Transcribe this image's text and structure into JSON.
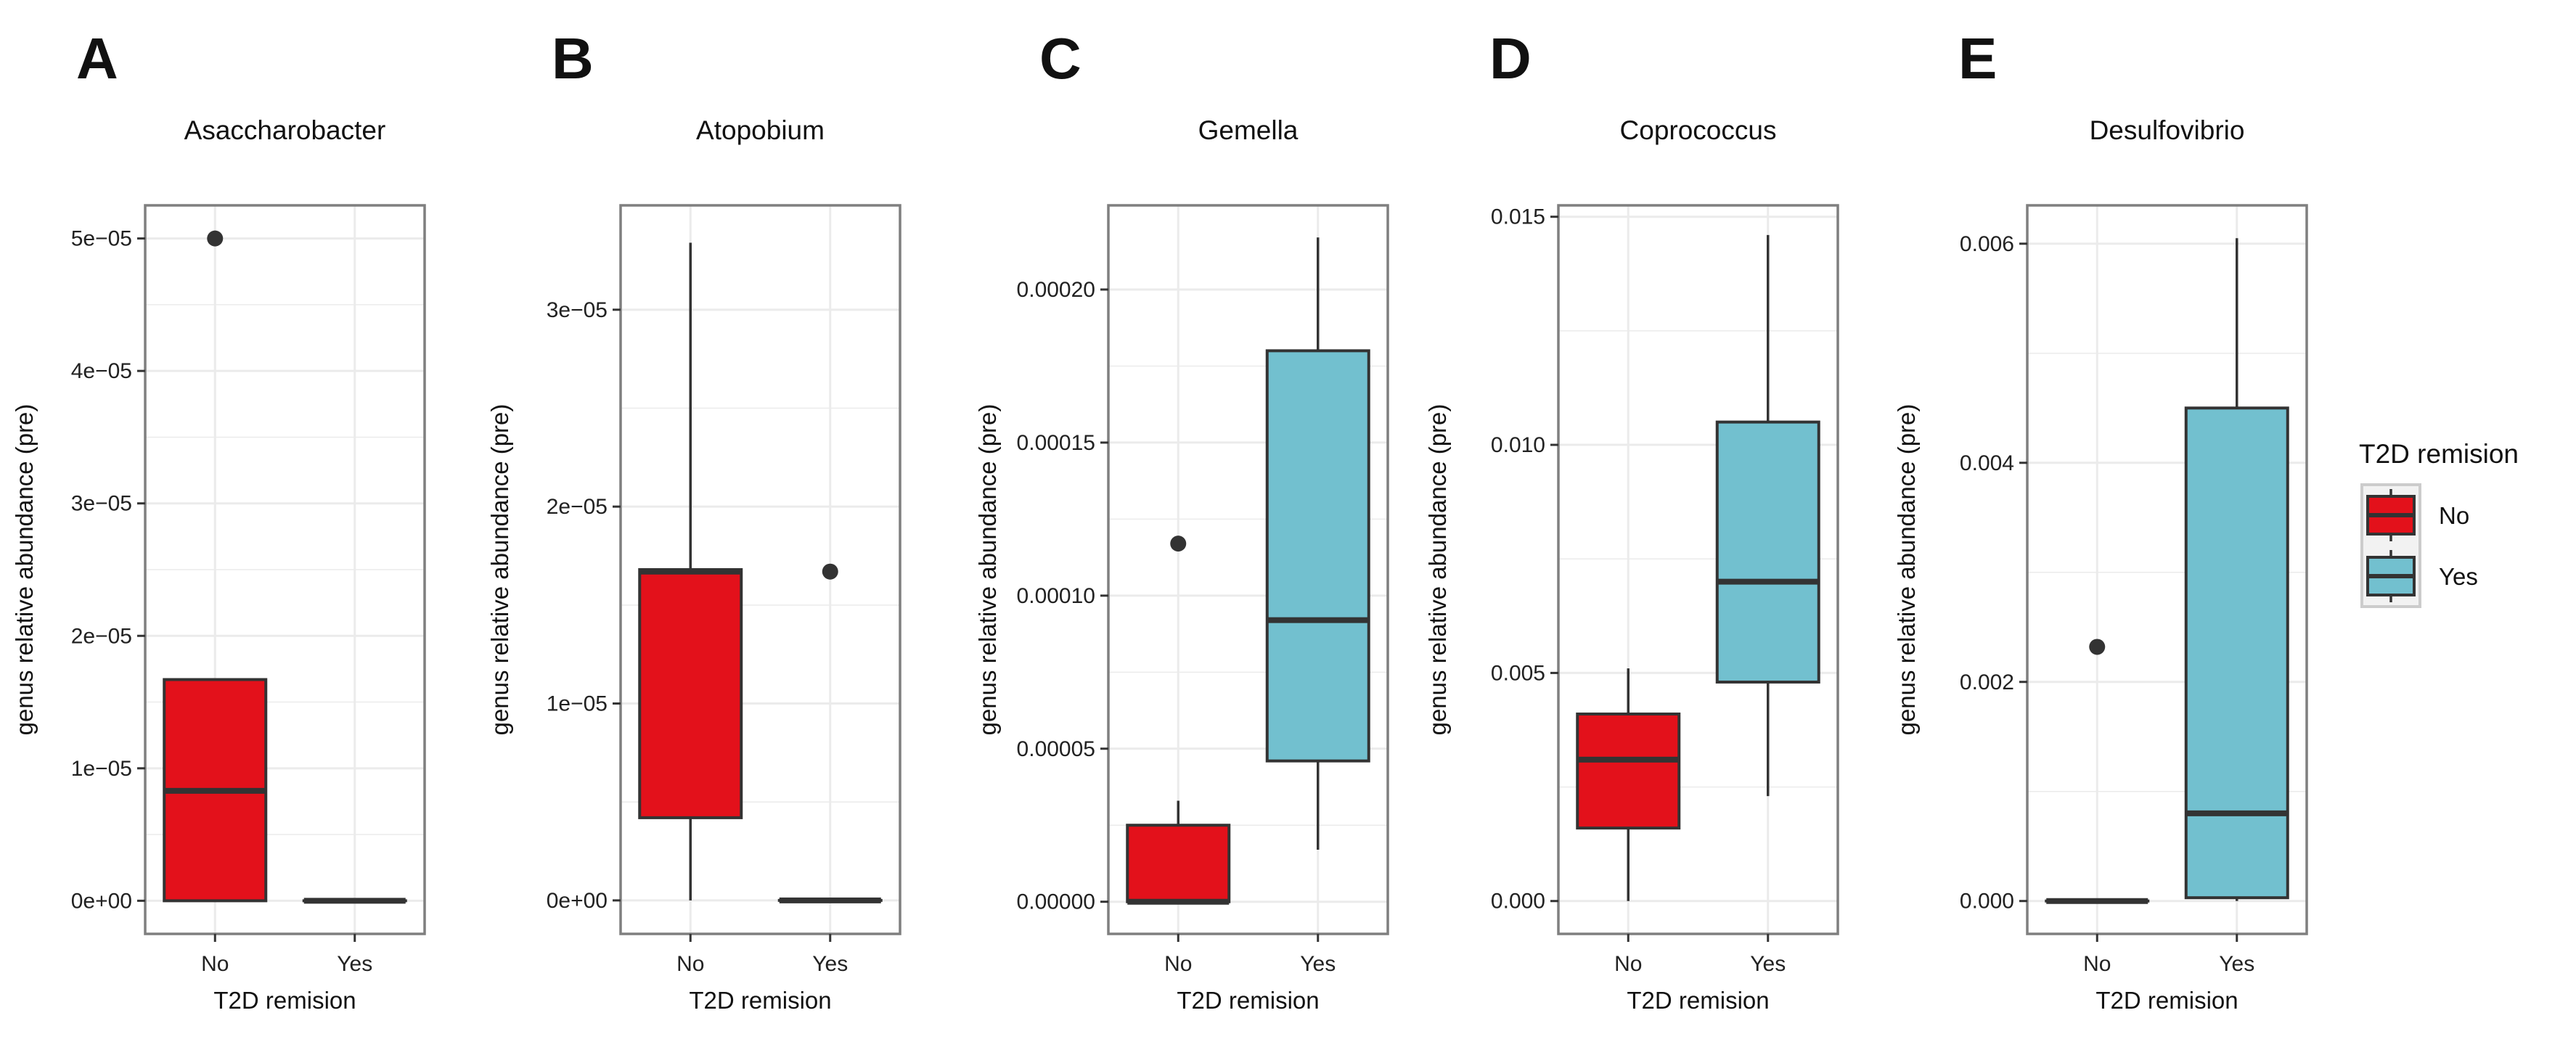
{
  "chart_data": [
    {
      "type": "box",
      "letter": "A",
      "title": "Asaccharobacter",
      "xlabel": "T2D remision",
      "ylabel": "genus relative abundance (pre)",
      "categories": [
        "No",
        "Yes"
      ],
      "ylim": [
        -2.5e-06,
        5.25e-05
      ],
      "yticks": [
        0,
        1e-05,
        2e-05,
        3e-05,
        4e-05,
        5e-05
      ],
      "yticklabels": [
        "0e+00",
        "1e−05",
        "2e−05",
        "3e−05",
        "4e−05",
        "5e−05"
      ],
      "boxes": [
        {
          "group": "No",
          "lower_whisker": 0,
          "q1": 0,
          "median": 8.3e-06,
          "q3": 1.67e-05,
          "upper_whisker": 1.67e-05,
          "outliers": [
            5e-05
          ]
        },
        {
          "group": "Yes",
          "lower_whisker": 0,
          "q1": 0,
          "median": 0,
          "q3": 0,
          "upper_whisker": 0,
          "outliers": []
        }
      ]
    },
    {
      "type": "box",
      "letter": "B",
      "title": "Atopobium",
      "xlabel": "T2D remision",
      "ylabel": "genus relative abundance (pre)",
      "categories": [
        "No",
        "Yes"
      ],
      "ylim": [
        -1.7e-06,
        3.53e-05
      ],
      "yticks": [
        0,
        1e-05,
        2e-05,
        3e-05
      ],
      "yticklabels": [
        "0e+00",
        "1e−05",
        "2e−05",
        "3e−05"
      ],
      "boxes": [
        {
          "group": "No",
          "lower_whisker": 0,
          "q1": 4.2e-06,
          "median": 1.67e-05,
          "q3": 1.68e-05,
          "upper_whisker": 3.34e-05,
          "outliers": []
        },
        {
          "group": "Yes",
          "lower_whisker": 0,
          "q1": 0,
          "median": 0,
          "q3": 0,
          "upper_whisker": 0,
          "outliers": [
            1.67e-05
          ]
        }
      ]
    },
    {
      "type": "box",
      "letter": "C",
      "title": "Gemella",
      "xlabel": "T2D remision",
      "ylabel": "genus relative abundance (pre)",
      "categories": [
        "No",
        "Yes"
      ],
      "ylim": [
        -1.05e-05,
        0.0002275
      ],
      "yticks": [
        0,
        5e-05,
        0.0001,
        0.00015,
        0.0002
      ],
      "yticklabels": [
        "0.00000",
        "0.00005",
        "0.00010",
        "0.00015",
        "0.00020"
      ],
      "boxes": [
        {
          "group": "No",
          "lower_whisker": 0,
          "q1": 0,
          "median": 0,
          "q3": 2.5e-05,
          "upper_whisker": 3.3e-05,
          "outliers": [
            0.000117
          ]
        },
        {
          "group": "Yes",
          "lower_whisker": 1.7e-05,
          "q1": 4.6e-05,
          "median": 9.2e-05,
          "q3": 0.00018,
          "upper_whisker": 0.000217,
          "outliers": []
        }
      ]
    },
    {
      "type": "box",
      "letter": "D",
      "title": "Coprococcus",
      "xlabel": "T2D remision",
      "ylabel": "genus relative abundance (pre)",
      "categories": [
        "No",
        "Yes"
      ],
      "ylim": [
        -0.00072,
        0.01525
      ],
      "yticks": [
        0,
        0.005,
        0.01,
        0.015
      ],
      "yticklabels": [
        "0.000",
        "0.005",
        "0.010",
        "0.015"
      ],
      "boxes": [
        {
          "group": "No",
          "lower_whisker": 0,
          "q1": 0.0016,
          "median": 0.0031,
          "q3": 0.0041,
          "upper_whisker": 0.0051,
          "outliers": []
        },
        {
          "group": "Yes",
          "lower_whisker": 0.0023,
          "q1": 0.0048,
          "median": 0.007,
          "q3": 0.0105,
          "upper_whisker": 0.0146,
          "outliers": []
        }
      ]
    },
    {
      "type": "box",
      "letter": "E",
      "title": "Desulfovibrio",
      "xlabel": "T2D remision",
      "ylabel": "genus relative abundance (pre)",
      "categories": [
        "No",
        "Yes"
      ],
      "ylim": [
        -0.0003,
        0.00635
      ],
      "yticks": [
        0,
        0.002,
        0.004,
        0.006
      ],
      "yticklabels": [
        "0.000",
        "0.002",
        "0.004",
        "0.006"
      ],
      "boxes": [
        {
          "group": "No",
          "lower_whisker": 0,
          "q1": 0,
          "median": 0,
          "q3": 0,
          "upper_whisker": 0,
          "outliers": [
            0.00232
          ]
        },
        {
          "group": "Yes",
          "lower_whisker": 0,
          "q1": 3e-05,
          "median": 0.0008,
          "q3": 0.0045,
          "upper_whisker": 0.00605,
          "outliers": []
        }
      ]
    }
  ],
  "legend": {
    "title": "T2D remision",
    "position": "right",
    "items": [
      {
        "label": "No",
        "color": "#e3111b"
      },
      {
        "label": "Yes",
        "color": "#72c0cf"
      }
    ]
  },
  "colors": {
    "No": "#e3111b",
    "Yes": "#72c0cf",
    "grid": "#ebebeb",
    "panel_border": "#7f7f7f",
    "box_edge": "#333333",
    "outlier": "#333333"
  }
}
